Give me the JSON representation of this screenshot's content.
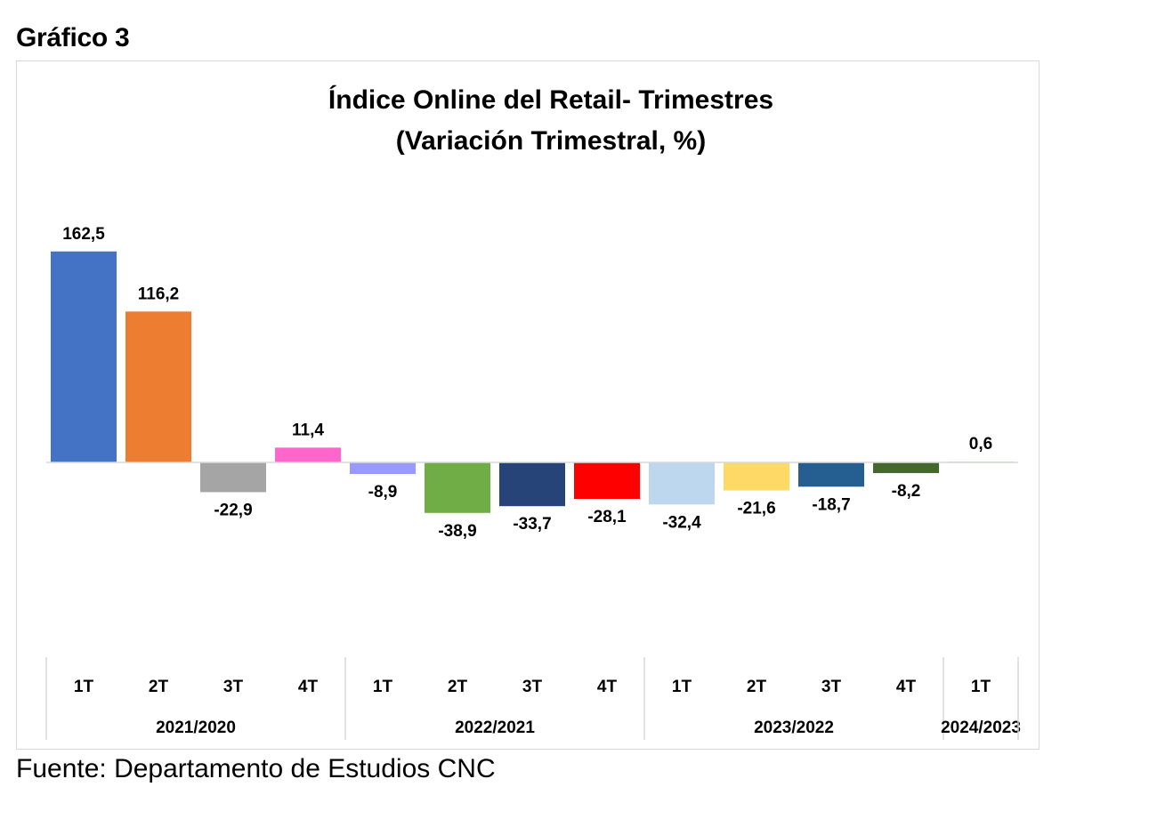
{
  "page": {
    "heading": "Gráfico 3",
    "source": "Fuente: Departamento de Estudios CNC"
  },
  "chart_data": {
    "type": "bar",
    "title": "Índice Online del Retail- Trimestres",
    "subtitle": "(Variación Trimestral, %)",
    "xlabel": "",
    "ylabel": "",
    "ylim": [
      -60,
      175
    ],
    "grid": false,
    "legend": "none",
    "categories": [
      "1T",
      "2T",
      "3T",
      "4T",
      "1T",
      "2T",
      "3T",
      "4T",
      "1T",
      "2T",
      "3T",
      "4T",
      "1T"
    ],
    "groups": [
      {
        "label": "2021/2020",
        "size": 4
      },
      {
        "label": "2022/2021",
        "size": 4
      },
      {
        "label": "2023/2022",
        "size": 4
      },
      {
        "label": "2024/2023",
        "size": 1
      }
    ],
    "values": [
      162.5,
      116.2,
      -22.9,
      11.4,
      -8.9,
      -38.9,
      -33.7,
      -28.1,
      -32.4,
      -21.6,
      -18.7,
      -8.2,
      0.6
    ],
    "value_labels": [
      "162,5",
      "116,2",
      "-22,9",
      "11,4",
      "-8,9",
      "-38,9",
      "-33,7",
      "-28,1",
      "-32,4",
      "-21,6",
      "-18,7",
      "-8,2",
      "0,6"
    ],
    "colors": [
      "#4472c4",
      "#ed7d31",
      "#a5a5a5",
      "#ff66cc",
      "#9999ff",
      "#70ad47",
      "#264478",
      "#ff0000",
      "#bdd7ee",
      "#ffd966",
      "#255e91",
      "#43682b",
      "#a9d18e"
    ]
  }
}
